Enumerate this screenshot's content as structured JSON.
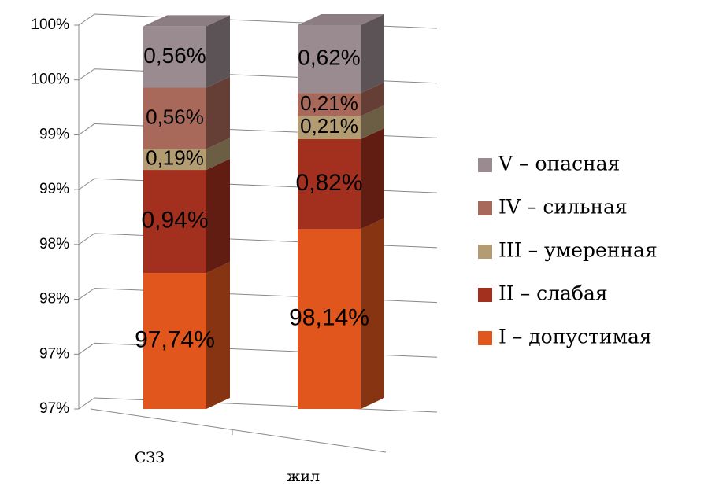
{
  "chart_data": {
    "type": "bar3d-stacked",
    "categories": [
      "СЗЗ",
      "жил"
    ],
    "series": [
      {
        "name": "I – допустимая",
        "color": "#e0561c",
        "values": [
          97.74,
          98.14
        ],
        "value_labels": [
          "97,74%",
          "98,14%"
        ]
      },
      {
        "name": "II – слабая",
        "color": "#a3301f",
        "values": [
          0.94,
          0.82
        ],
        "value_labels": [
          "0,94%",
          "0,82%"
        ]
      },
      {
        "name": "III – умеренная",
        "color": "#b39c72",
        "values": [
          0.19,
          0.21
        ],
        "value_labels": [
          "0,19%",
          "0,21%"
        ]
      },
      {
        "name": "IV – сильная",
        "color": "#a8695a",
        "values": [
          0.56,
          0.21
        ],
        "value_labels": [
          "0,56%",
          "0,21%"
        ]
      },
      {
        "name": "V – опасная",
        "color": "#9a8b90",
        "values": [
          0.56,
          0.62
        ],
        "value_labels": [
          "0,56%",
          "0,62%"
        ]
      }
    ],
    "ylim": [
      96.5,
      100
    ],
    "yticks": [
      {
        "value": 96.5,
        "label": "97%"
      },
      {
        "value": 97,
        "label": "97%"
      },
      {
        "value": 97.5,
        "label": "98%"
      },
      {
        "value": 98,
        "label": "98%"
      },
      {
        "value": 98.5,
        "label": "99%"
      },
      {
        "value": 99,
        "label": "99%"
      },
      {
        "value": 99.5,
        "label": "100%"
      },
      {
        "value": 100,
        "label": "100%"
      }
    ],
    "grid": true
  }
}
